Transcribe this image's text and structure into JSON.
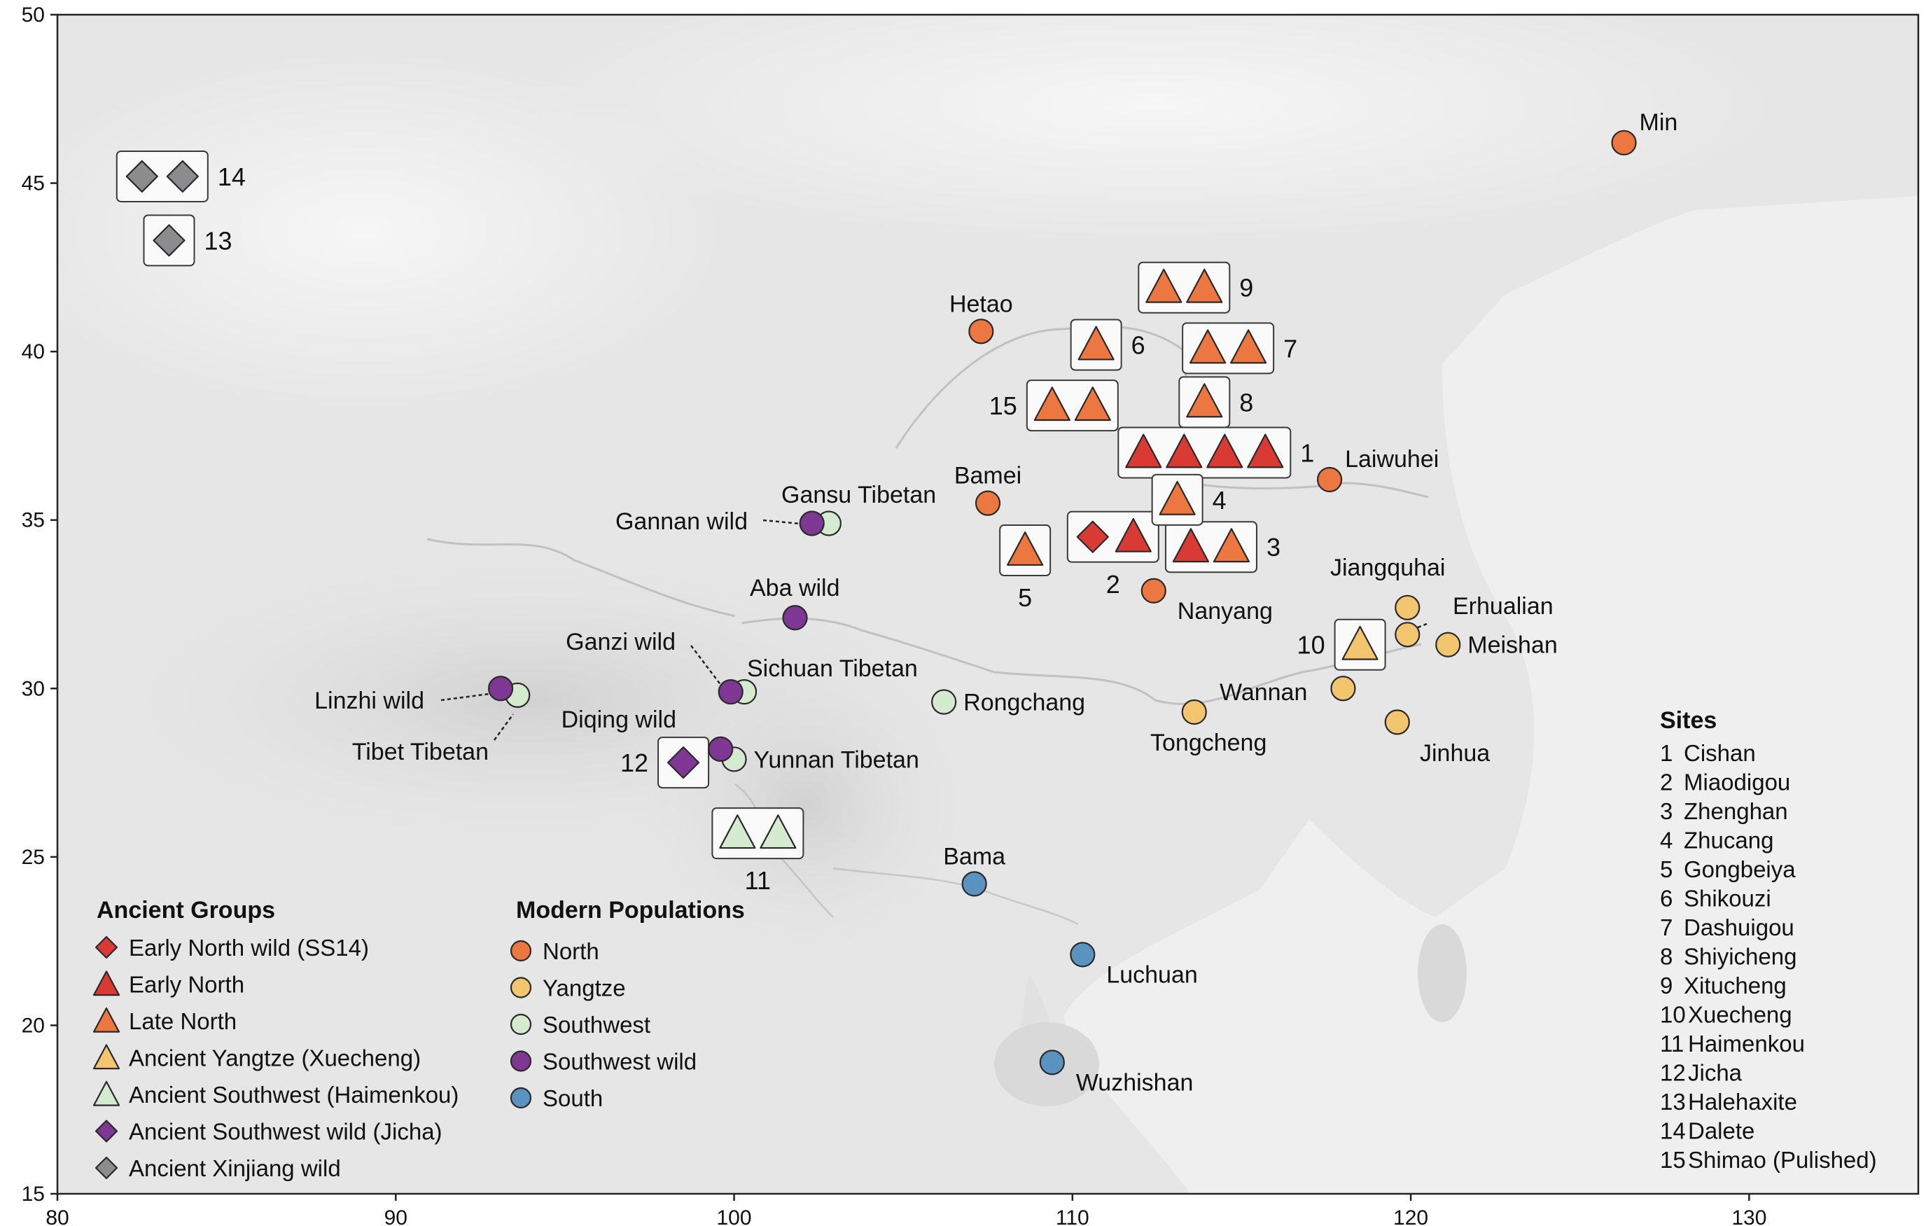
{
  "chart_data": {
    "type": "map",
    "xlim": [
      80,
      135
    ],
    "ylim": [
      15,
      50
    ],
    "x_ticks": [
      80,
      90,
      100,
      110,
      120,
      130
    ],
    "y_ticks": [
      15,
      20,
      25,
      30,
      35,
      40,
      45,
      50
    ],
    "colors": {
      "north": "#ED7740",
      "yangtze": "#F2C56E",
      "southwest": "#D4EBD0",
      "southwest_wild": "#7E3894",
      "south": "#5A93BF",
      "early_north_wild": "#D93A34",
      "early_north": "#D93A34",
      "late_north": "#ED7740",
      "ancient_yangtze": "#F2C56E",
      "ancient_southwest": "#D4EBD0",
      "ancient_southwest_wild": "#7E3894",
      "ancient_xinjiang_wild": "#8C8C8E"
    },
    "modern_populations": [
      {
        "name": "Min",
        "lon": 126.3,
        "lat": 46.2,
        "group": "north",
        "label_pos": "right-up"
      },
      {
        "name": "Hetao",
        "lon": 107.3,
        "lat": 40.6,
        "group": "north",
        "label_pos": "above"
      },
      {
        "name": "Bamei",
        "lon": 107.5,
        "lat": 35.5,
        "group": "north",
        "label_pos": "above"
      },
      {
        "name": "Laiwuhei",
        "lon": 117.6,
        "lat": 36.2,
        "group": "north",
        "label_pos": "right-up"
      },
      {
        "name": "Nanyang",
        "lon": 112.4,
        "lat": 32.9,
        "group": "north",
        "label_pos": "right-down"
      },
      {
        "name": "Jiangquhai",
        "lon": 119.9,
        "lat": 32.4,
        "group": "yangtze",
        "label_pos": "above"
      },
      {
        "name": "Erhualian",
        "lon": 119.9,
        "lat": 31.6,
        "group": "yangtze",
        "label_pos": "leader-right"
      },
      {
        "name": "Meishan",
        "lon": 121.1,
        "lat": 31.3,
        "group": "yangtze",
        "label_pos": "right"
      },
      {
        "name": "Wannan",
        "lon": 118.0,
        "lat": 30.0,
        "group": "yangtze",
        "label_pos": "left"
      },
      {
        "name": "Tongcheng",
        "lon": 113.6,
        "lat": 29.3,
        "group": "yangtze",
        "label_pos": "below"
      },
      {
        "name": "Jinhua",
        "lon": 119.6,
        "lat": 29.0,
        "group": "yangtze",
        "label_pos": "right-down"
      },
      {
        "name": "Gansu Tibetan",
        "lon": 102.8,
        "lat": 34.9,
        "group": "southwest",
        "label_pos": "above"
      },
      {
        "name": "Sichuan Tibetan",
        "lon": 100.3,
        "lat": 29.9,
        "group": "southwest",
        "label_pos": "right-up"
      },
      {
        "name": "Tibet Tibetan",
        "lon": 93.6,
        "lat": 29.8,
        "group": "southwest",
        "label_pos": "leader-below"
      },
      {
        "name": "Yunnan Tibetan",
        "lon": 100.0,
        "lat": 27.9,
        "group": "southwest",
        "label_pos": "right"
      },
      {
        "name": "Rongchang",
        "lon": 106.2,
        "lat": 29.6,
        "group": "southwest",
        "label_pos": "right"
      },
      {
        "name": "Gannan wild",
        "lon": 102.3,
        "lat": 34.9,
        "group": "southwest_wild",
        "label_pos": "leader-left"
      },
      {
        "name": "Aba wild",
        "lon": 101.8,
        "lat": 32.1,
        "group": "southwest_wild",
        "label_pos": "above"
      },
      {
        "name": "Ganzi wild",
        "lon": 99.9,
        "lat": 29.9,
        "group": "southwest_wild",
        "label_pos": "leader-up-left"
      },
      {
        "name": "Linzhi wild",
        "lon": 93.1,
        "lat": 30.0,
        "group": "southwest_wild",
        "label_pos": "leader-left"
      },
      {
        "name": "Diqing wild",
        "lon": 99.6,
        "lat": 28.2,
        "group": "southwest_wild",
        "label_pos": "above-left"
      },
      {
        "name": "Bama",
        "lon": 107.1,
        "lat": 24.2,
        "group": "south",
        "label_pos": "above"
      },
      {
        "name": "Luchuan",
        "lon": 110.3,
        "lat": 22.1,
        "group": "south",
        "label_pos": "right-down"
      },
      {
        "name": "Wuzhishan",
        "lon": 109.4,
        "lat": 18.9,
        "group": "south",
        "label_pos": "right-down"
      }
    ],
    "ancient_sites": [
      {
        "id": "1",
        "lon": 113.9,
        "lat": 37.0,
        "markers": [
          "early_north",
          "early_north",
          "early_north",
          "early_north"
        ],
        "label_pos": "right"
      },
      {
        "id": "2",
        "lon": 111.2,
        "lat": 34.5,
        "markers": [
          "early_north_wild",
          "early_north"
        ],
        "label_pos": "below"
      },
      {
        "id": "3",
        "lon": 114.1,
        "lat": 34.2,
        "markers": [
          "early_north",
          "late_north"
        ],
        "label_pos": "right"
      },
      {
        "id": "4",
        "lon": 113.1,
        "lat": 35.6,
        "markers": [
          "late_north"
        ],
        "label_pos": "right"
      },
      {
        "id": "5",
        "lon": 108.6,
        "lat": 34.1,
        "markers": [
          "late_north"
        ],
        "label_pos": "below"
      },
      {
        "id": "6",
        "lon": 110.7,
        "lat": 40.2,
        "markers": [
          "late_north"
        ],
        "label_pos": "right"
      },
      {
        "id": "7",
        "lon": 114.6,
        "lat": 40.1,
        "markers": [
          "late_north",
          "late_north"
        ],
        "label_pos": "right"
      },
      {
        "id": "8",
        "lon": 113.9,
        "lat": 38.5,
        "markers": [
          "late_north"
        ],
        "label_pos": "right"
      },
      {
        "id": "9",
        "lon": 113.3,
        "lat": 41.9,
        "markers": [
          "late_north",
          "late_north"
        ],
        "label_pos": "right"
      },
      {
        "id": "10",
        "lon": 118.5,
        "lat": 31.3,
        "markers": [
          "ancient_yangtze"
        ],
        "label_pos": "left"
      },
      {
        "id": "11",
        "lon": 100.7,
        "lat": 25.7,
        "markers": [
          "ancient_southwest",
          "ancient_southwest"
        ],
        "label_pos": "below"
      },
      {
        "id": "12",
        "lon": 98.5,
        "lat": 27.8,
        "markers": [
          "ancient_southwest_wild"
        ],
        "label_pos": "left"
      },
      {
        "id": "13",
        "lon": 83.3,
        "lat": 43.3,
        "markers": [
          "ancient_xinjiang_wild"
        ],
        "label_pos": "right"
      },
      {
        "id": "14",
        "lon": 83.1,
        "lat": 45.2,
        "markers": [
          "ancient_xinjiang_wild",
          "ancient_xinjiang_wild"
        ],
        "label_pos": "right"
      },
      {
        "id": "15",
        "lon": 110.0,
        "lat": 38.4,
        "markers": [
          "late_north",
          "late_north"
        ],
        "label_pos": "left"
      }
    ],
    "legend_ancient": {
      "title": "Ancient Groups",
      "placement": "bottom-left",
      "items": [
        {
          "label": "Early North wild (SS14)",
          "shape": "diamond",
          "group": "early_north_wild"
        },
        {
          "label": "Early North",
          "shape": "triangle",
          "group": "early_north"
        },
        {
          "label": "Late North",
          "shape": "triangle",
          "group": "late_north"
        },
        {
          "label": "Ancient Yangtze (Xuecheng)",
          "shape": "triangle",
          "group": "ancient_yangtze"
        },
        {
          "label": "Ancient Southwest (Haimenkou)",
          "shape": "triangle",
          "group": "ancient_southwest"
        },
        {
          "label": "Ancient Southwest wild (Jicha)",
          "shape": "diamond",
          "group": "ancient_southwest_wild"
        },
        {
          "label": "Ancient Xinjiang wild",
          "shape": "diamond",
          "group": "ancient_xinjiang_wild"
        }
      ]
    },
    "legend_modern": {
      "title": "Modern Populations",
      "placement": "bottom-center-left",
      "items": [
        {
          "label": "North",
          "shape": "circle",
          "group": "north"
        },
        {
          "label": "Yangtze",
          "shape": "circle",
          "group": "yangtze"
        },
        {
          "label": "Southwest",
          "shape": "circle",
          "group": "southwest"
        },
        {
          "label": "Southwest wild",
          "shape": "circle",
          "group": "southwest_wild"
        },
        {
          "label": "South",
          "shape": "circle",
          "group": "south"
        }
      ]
    },
    "sites_list": {
      "title": "Sites",
      "placement": "bottom-right",
      "items": [
        {
          "num": "1",
          "name": "Cishan"
        },
        {
          "num": "2",
          "name": "Miaodigou"
        },
        {
          "num": "3",
          "name": "Zhenghan"
        },
        {
          "num": "4",
          "name": "Zhucang"
        },
        {
          "num": "5",
          "name": "Gongbeiya"
        },
        {
          "num": "6",
          "name": "Shikouzi"
        },
        {
          "num": "7",
          "name": "Dashuigou"
        },
        {
          "num": "8",
          "name": "Shiyicheng"
        },
        {
          "num": "9",
          "name": "Xitucheng"
        },
        {
          "num": "10",
          "name": "Xuecheng"
        },
        {
          "num": "11",
          "name": "Haimenkou"
        },
        {
          "num": "12",
          "name": "Jicha"
        },
        {
          "num": "13",
          "name": "Halehaxite"
        },
        {
          "num": "14",
          "name": "Dalete"
        },
        {
          "num": "15",
          "name": "Shimao (Pulished)"
        }
      ]
    }
  }
}
